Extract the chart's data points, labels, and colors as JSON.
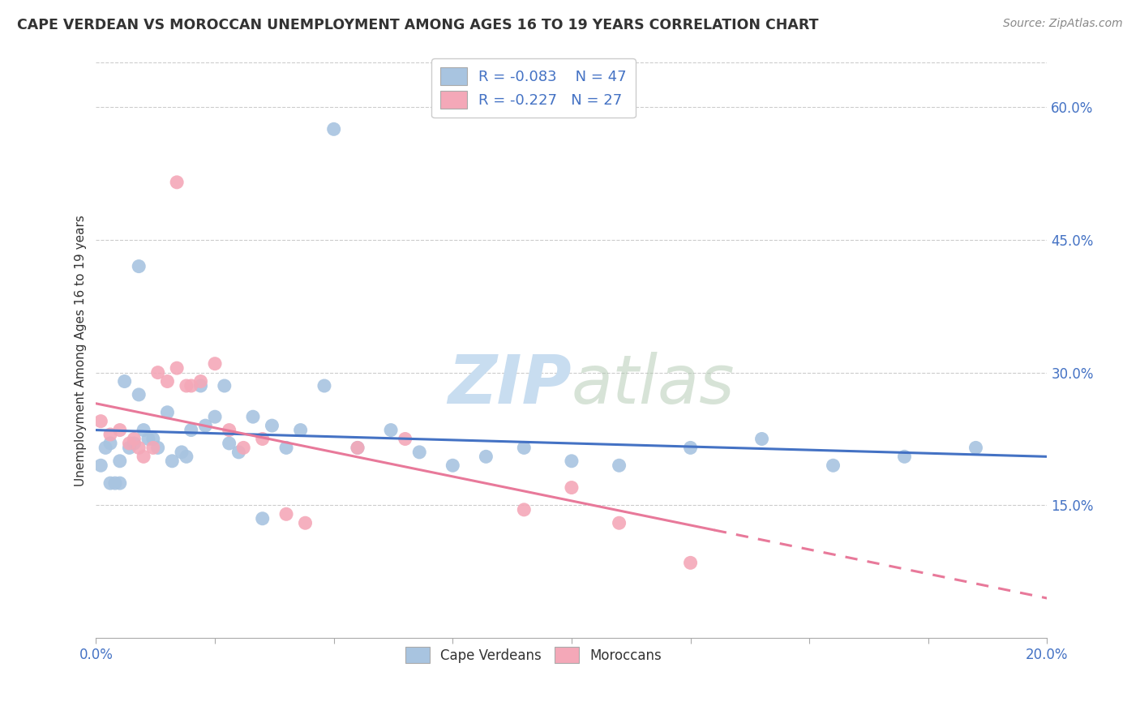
{
  "title": "CAPE VERDEAN VS MOROCCAN UNEMPLOYMENT AMONG AGES 16 TO 19 YEARS CORRELATION CHART",
  "source": "Source: ZipAtlas.com",
  "ylabel": "Unemployment Among Ages 16 to 19 years",
  "xlim": [
    0.0,
    0.2
  ],
  "ylim": [
    0.0,
    0.65
  ],
  "yticks": [
    0.15,
    0.3,
    0.45,
    0.6
  ],
  "ytick_labels": [
    "15.0%",
    "30.0%",
    "45.0%",
    "60.0%"
  ],
  "xtick_labels_show": [
    "0.0%",
    "20.0%"
  ],
  "blue_R": -0.083,
  "blue_N": 47,
  "pink_R": -0.227,
  "pink_N": 27,
  "blue_color": "#a8c4e0",
  "pink_color": "#f4a8b8",
  "trend_blue": "#4472c4",
  "trend_pink": "#e8799a",
  "watermark_color": "#c8ddf0",
  "background_color": "#ffffff",
  "grid_color": "#cccccc",
  "blue_x": [
    0.05,
    0.009,
    0.003,
    0.005,
    0.001,
    0.002,
    0.003,
    0.005,
    0.007,
    0.008,
    0.01,
    0.012,
    0.015,
    0.018,
    0.02,
    0.022,
    0.025,
    0.027,
    0.03,
    0.033,
    0.037,
    0.04,
    0.043,
    0.048,
    0.055,
    0.062,
    0.068,
    0.075,
    0.082,
    0.09,
    0.1,
    0.11,
    0.125,
    0.14,
    0.155,
    0.17,
    0.185,
    0.004,
    0.006,
    0.009,
    0.011,
    0.013,
    0.016,
    0.019,
    0.023,
    0.028,
    0.035
  ],
  "blue_y": [
    0.575,
    0.42,
    0.175,
    0.2,
    0.195,
    0.215,
    0.22,
    0.175,
    0.215,
    0.22,
    0.235,
    0.225,
    0.255,
    0.21,
    0.235,
    0.285,
    0.25,
    0.285,
    0.21,
    0.25,
    0.24,
    0.215,
    0.235,
    0.285,
    0.215,
    0.235,
    0.21,
    0.195,
    0.205,
    0.215,
    0.2,
    0.195,
    0.215,
    0.225,
    0.195,
    0.205,
    0.215,
    0.175,
    0.29,
    0.275,
    0.225,
    0.215,
    0.2,
    0.205,
    0.24,
    0.22,
    0.135
  ],
  "pink_x": [
    0.017,
    0.001,
    0.003,
    0.005,
    0.007,
    0.008,
    0.009,
    0.01,
    0.012,
    0.013,
    0.015,
    0.017,
    0.019,
    0.02,
    0.022,
    0.025,
    0.028,
    0.031,
    0.035,
    0.04,
    0.044,
    0.055,
    0.065,
    0.09,
    0.1,
    0.11,
    0.125
  ],
  "pink_y": [
    0.515,
    0.245,
    0.23,
    0.235,
    0.22,
    0.225,
    0.215,
    0.205,
    0.215,
    0.3,
    0.29,
    0.305,
    0.285,
    0.285,
    0.29,
    0.31,
    0.235,
    0.215,
    0.225,
    0.14,
    0.13,
    0.215,
    0.225,
    0.145,
    0.17,
    0.13,
    0.085
  ],
  "blue_trend_x0": 0.0,
  "blue_trend_y0": 0.235,
  "blue_trend_x1": 0.2,
  "blue_trend_y1": 0.205,
  "pink_trend_x0": 0.0,
  "pink_trend_y0": 0.265,
  "pink_trend_x1": 0.2,
  "pink_trend_y1": 0.045
}
